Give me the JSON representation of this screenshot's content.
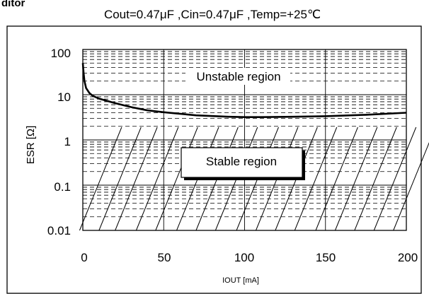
{
  "chart_data": {
    "type": "line",
    "header_fragment": "ditor",
    "title": "Cout=0.47μF ,Cin=0.47μF ,Temp=+25℃",
    "xlabel": "IOUT [mA]",
    "ylabel": "ESR  [Ω]",
    "x_ticks": [
      "0",
      "50",
      "100",
      "150",
      "200"
    ],
    "y_ticks": [
      "100",
      "10",
      "1",
      "0.1",
      "0.01"
    ],
    "xlim": [
      0,
      200
    ],
    "ylim": [
      0.01,
      100
    ],
    "y_scale": "log",
    "grid": true,
    "annotations": {
      "unstable": "Unstable region",
      "stable": "Stable region"
    },
    "series": [
      {
        "x": [
          0,
          0.5,
          1,
          2,
          4,
          6,
          10,
          20,
          30,
          40,
          50,
          70,
          90,
          100,
          110,
          130,
          150,
          175,
          200
        ],
        "y": [
          50,
          30,
          20,
          14,
          11,
          9.5,
          8.2,
          6.5,
          5.3,
          4.5,
          4.1,
          3.5,
          3.25,
          3.2,
          3.2,
          3.25,
          3.35,
          3.6,
          4.0
        ]
      }
    ]
  }
}
